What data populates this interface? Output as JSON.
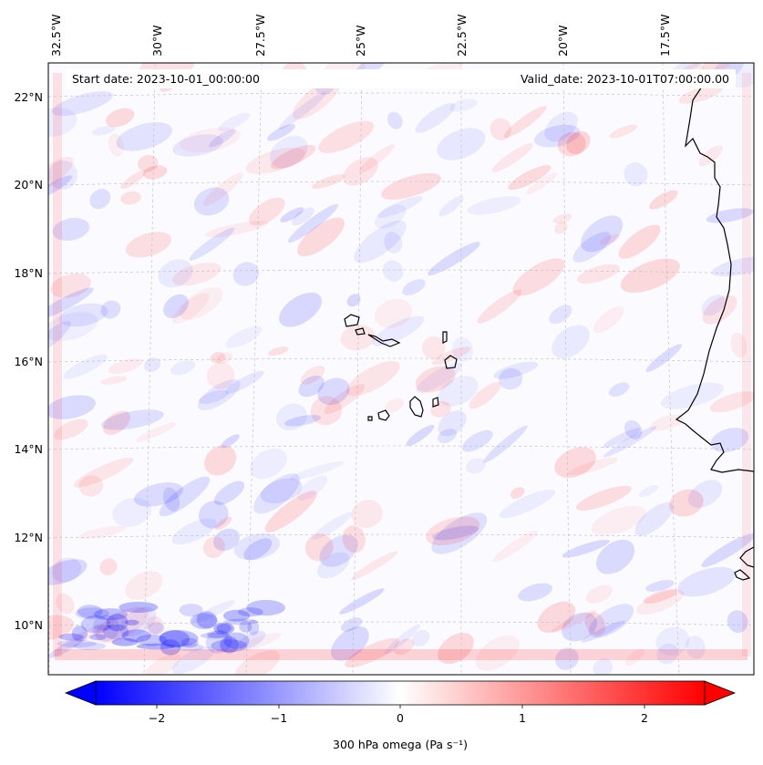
{
  "header": {
    "start_date": "Start date: 2023-10-01_00:00:00",
    "valid_date": "Valid_date: 2023-10-01T07:00:00.00"
  },
  "map": {
    "projection": "lambert-conformal",
    "gridlines": true,
    "coastline_color": "#000000",
    "longitude_labels": [
      "32.5°W",
      "30°W",
      "27.5°W",
      "25°W",
      "22.5°W",
      "20°W",
      "17.5°W"
    ],
    "latitude_labels": [
      "22°N",
      "20°N",
      "18°N",
      "16°N",
      "14°N",
      "12°N",
      "10°N"
    ]
  },
  "colorbar": {
    "label": "300 hPa omega (Pa s⁻¹)",
    "ticks": [
      "−2",
      "−1",
      "0",
      "1",
      "2"
    ],
    "range": [
      -2.7,
      2.7
    ],
    "colormap": "bwr",
    "extend": "both",
    "low_color": "#0000ff",
    "high_color": "#ff0000"
  }
}
